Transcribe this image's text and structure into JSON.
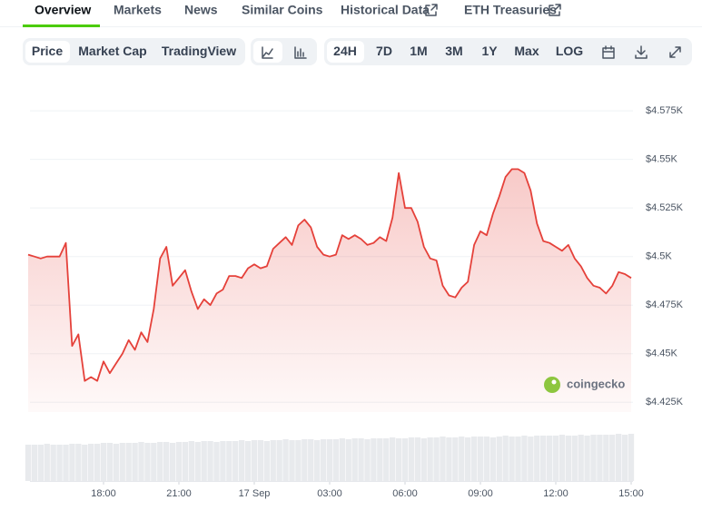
{
  "tabs": [
    "Overview",
    "Markets",
    "News",
    "Similar Coins",
    "Historical Data",
    "ETH Treasuries"
  ],
  "toolbar": {
    "views": [
      "Price",
      "Market Cap",
      "TradingView"
    ],
    "ranges": [
      "24H",
      "7D",
      "1M",
      "3M",
      "1Y",
      "Max",
      "LOG"
    ]
  },
  "watermark": "coingecko",
  "chart_data": {
    "type": "line",
    "x": [
      -9,
      -8.75,
      -8.5,
      -8.25,
      -8,
      -7.75,
      -7.5,
      -7.25,
      -7,
      -6.75,
      -6.5,
      -6.25,
      -6,
      -5.75,
      -5.5,
      -5.25,
      -5,
      -4.75,
      -4.5,
      -4.25,
      -4,
      -3.75,
      -3.5,
      -3.25,
      -3,
      -2.75,
      -2.5,
      -2.25,
      -2,
      -1.75,
      -1.5,
      -1.25,
      -1,
      -0.75,
      -0.5,
      -0.25,
      0,
      0.25,
      0.5,
      0.75,
      1,
      1.25,
      1.5,
      1.75,
      2,
      2.25,
      2.5,
      2.75,
      3,
      3.25,
      3.5,
      3.75,
      4,
      4.25,
      4.5,
      4.75,
      5,
      5.25,
      5.5,
      5.75,
      6,
      6.25,
      6.5,
      6.75,
      7,
      7.25,
      7.5,
      7.75,
      8,
      8.25,
      8.5,
      8.75,
      9,
      9.25,
      9.5,
      9.75,
      10,
      10.25,
      10.5,
      10.75,
      11,
      11.25,
      11.5,
      11.75,
      12,
      12.25,
      12.5,
      12.75,
      13,
      13.25,
      13.5,
      13.75,
      14,
      14.25,
      14.5,
      14.75,
      15
    ],
    "series": [
      {
        "color": "#e5413a",
        "values": [
          4501,
          4500,
          4499,
          4500,
          4500,
          4500,
          4507,
          4454,
          4460,
          4436,
          4438,
          4436,
          4446,
          4440,
          4445,
          4450,
          4457,
          4452,
          4461,
          4456,
          4473,
          4499,
          4505,
          4485,
          4489,
          4493,
          4482,
          4473,
          4478,
          4475,
          4481,
          4483,
          4490,
          4490,
          4489,
          4494,
          4496,
          4494,
          4495,
          4504,
          4507,
          4510,
          4506,
          4516,
          4519,
          4515,
          4505,
          4501,
          4500,
          4501,
          4511,
          4509,
          4511,
          4509,
          4506,
          4507,
          4510,
          4508,
          4520,
          4543,
          4525,
          4525,
          4518,
          4505,
          4499,
          4498,
          4485,
          4480,
          4479,
          4484,
          4487,
          4506,
          4513,
          4511,
          4522,
          4531,
          4541,
          4545,
          4545,
          4543,
          4534,
          4517,
          4508,
          4507,
          4505,
          4503,
          4506,
          4499,
          4495,
          4489,
          4485,
          4484,
          4481,
          4485,
          4492,
          4491,
          4489
        ]
      }
    ],
    "volume": {
      "color": "#e8eaed",
      "values": [
        40,
        40,
        40,
        41,
        40,
        40,
        40,
        41,
        41,
        40,
        41,
        41,
        42,
        42,
        41,
        42,
        42,
        42,
        43,
        42,
        42,
        43,
        43,
        42,
        43,
        43,
        44,
        43,
        44,
        44,
        43,
        44,
        44,
        44,
        45,
        44,
        45,
        45,
        44,
        45,
        45,
        46,
        45,
        45,
        46,
        46,
        45,
        46,
        46,
        46,
        47,
        46,
        47,
        47,
        46,
        47,
        47,
        47,
        48,
        47,
        47,
        48,
        48,
        47,
        48,
        48,
        49,
        48,
        48,
        49,
        48,
        49,
        49,
        49,
        48,
        49,
        50,
        49,
        49,
        50,
        49,
        50,
        50,
        50,
        50,
        51,
        50,
        50,
        51,
        50,
        51,
        51,
        51,
        51,
        52,
        51,
        52
      ]
    },
    "xlim": [
      -9,
      15
    ],
    "xticks": [
      {
        "value": -6,
        "label": "18:00"
      },
      {
        "value": -3,
        "label": "21:00"
      },
      {
        "value": 0,
        "label": "17 Sep"
      },
      {
        "value": 3,
        "label": "03:00"
      },
      {
        "value": 6,
        "label": "06:00"
      },
      {
        "value": 9,
        "label": "09:00"
      },
      {
        "value": 12,
        "label": "12:00"
      },
      {
        "value": 15,
        "label": "15:00"
      }
    ],
    "ylim": [
      4420,
      4590
    ],
    "yticks": [
      {
        "value": 4425,
        "label": "$4.425K"
      },
      {
        "value": 4450,
        "label": "$4.45K"
      },
      {
        "value": 4475,
        "label": "$4.475K"
      },
      {
        "value": 4500,
        "label": "$4.5K"
      },
      {
        "value": 4525,
        "label": "$4.525K"
      },
      {
        "value": 4550,
        "label": "$4.55K"
      },
      {
        "value": 4575,
        "label": "$4.575K"
      }
    ],
    "grid": true
  }
}
